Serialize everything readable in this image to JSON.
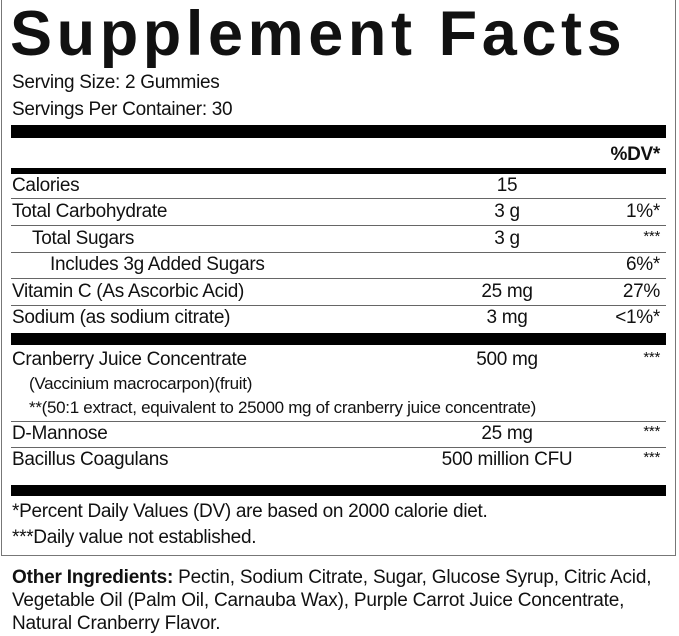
{
  "title": "Supplement Facts",
  "serving_size": "Serving Size: 2 Gummies",
  "servings_per_container": "Servings Per Container: 30",
  "dv_header": "%DV*",
  "nutrients": [
    {
      "name": "Calories",
      "amount": "15",
      "dv": ""
    },
    {
      "name": "Total Carbohydrate",
      "amount": "3 g",
      "dv": "1%*"
    },
    {
      "name": "Total Sugars",
      "amount": "3 g",
      "dv": "***"
    },
    {
      "name": "Includes 3g Added Sugars",
      "amount": "",
      "dv": "6%*"
    },
    {
      "name": "Vitamin C (As Ascorbic Acid)",
      "amount": "25 mg",
      "dv": "27%"
    },
    {
      "name": "Sodium (as sodium citrate)",
      "amount": "3 mg",
      "dv": "<1%*"
    }
  ],
  "ingredients": [
    {
      "name": "Cranberry Juice Concentrate",
      "sub1": "(Vaccinium macrocarpon)(fruit)",
      "sub2": "**(50:1 extract, equivalent to 25000 mg of cranberry juice concentrate)",
      "amount": "500 mg",
      "dv": "***"
    },
    {
      "name": "D-Mannose",
      "amount": "25 mg",
      "dv": "***"
    },
    {
      "name": "Bacillus Coagulans",
      "amount": "500 million CFU",
      "dv": "***"
    }
  ],
  "footnotes": [
    "*Percent Daily Values (DV) are based on 2000 calorie diet.",
    "***Daily value not established."
  ],
  "other_ingredients": {
    "label": "Other Ingredients:",
    "text": " Pectin, Sodium Citrate, Sugar, Glucose Syrup, Citric Acid, Vegetable Oil (Palm Oil, Carnauba Wax), Purple Carrot Juice Concentrate, Natural Cranberry Flavor."
  }
}
